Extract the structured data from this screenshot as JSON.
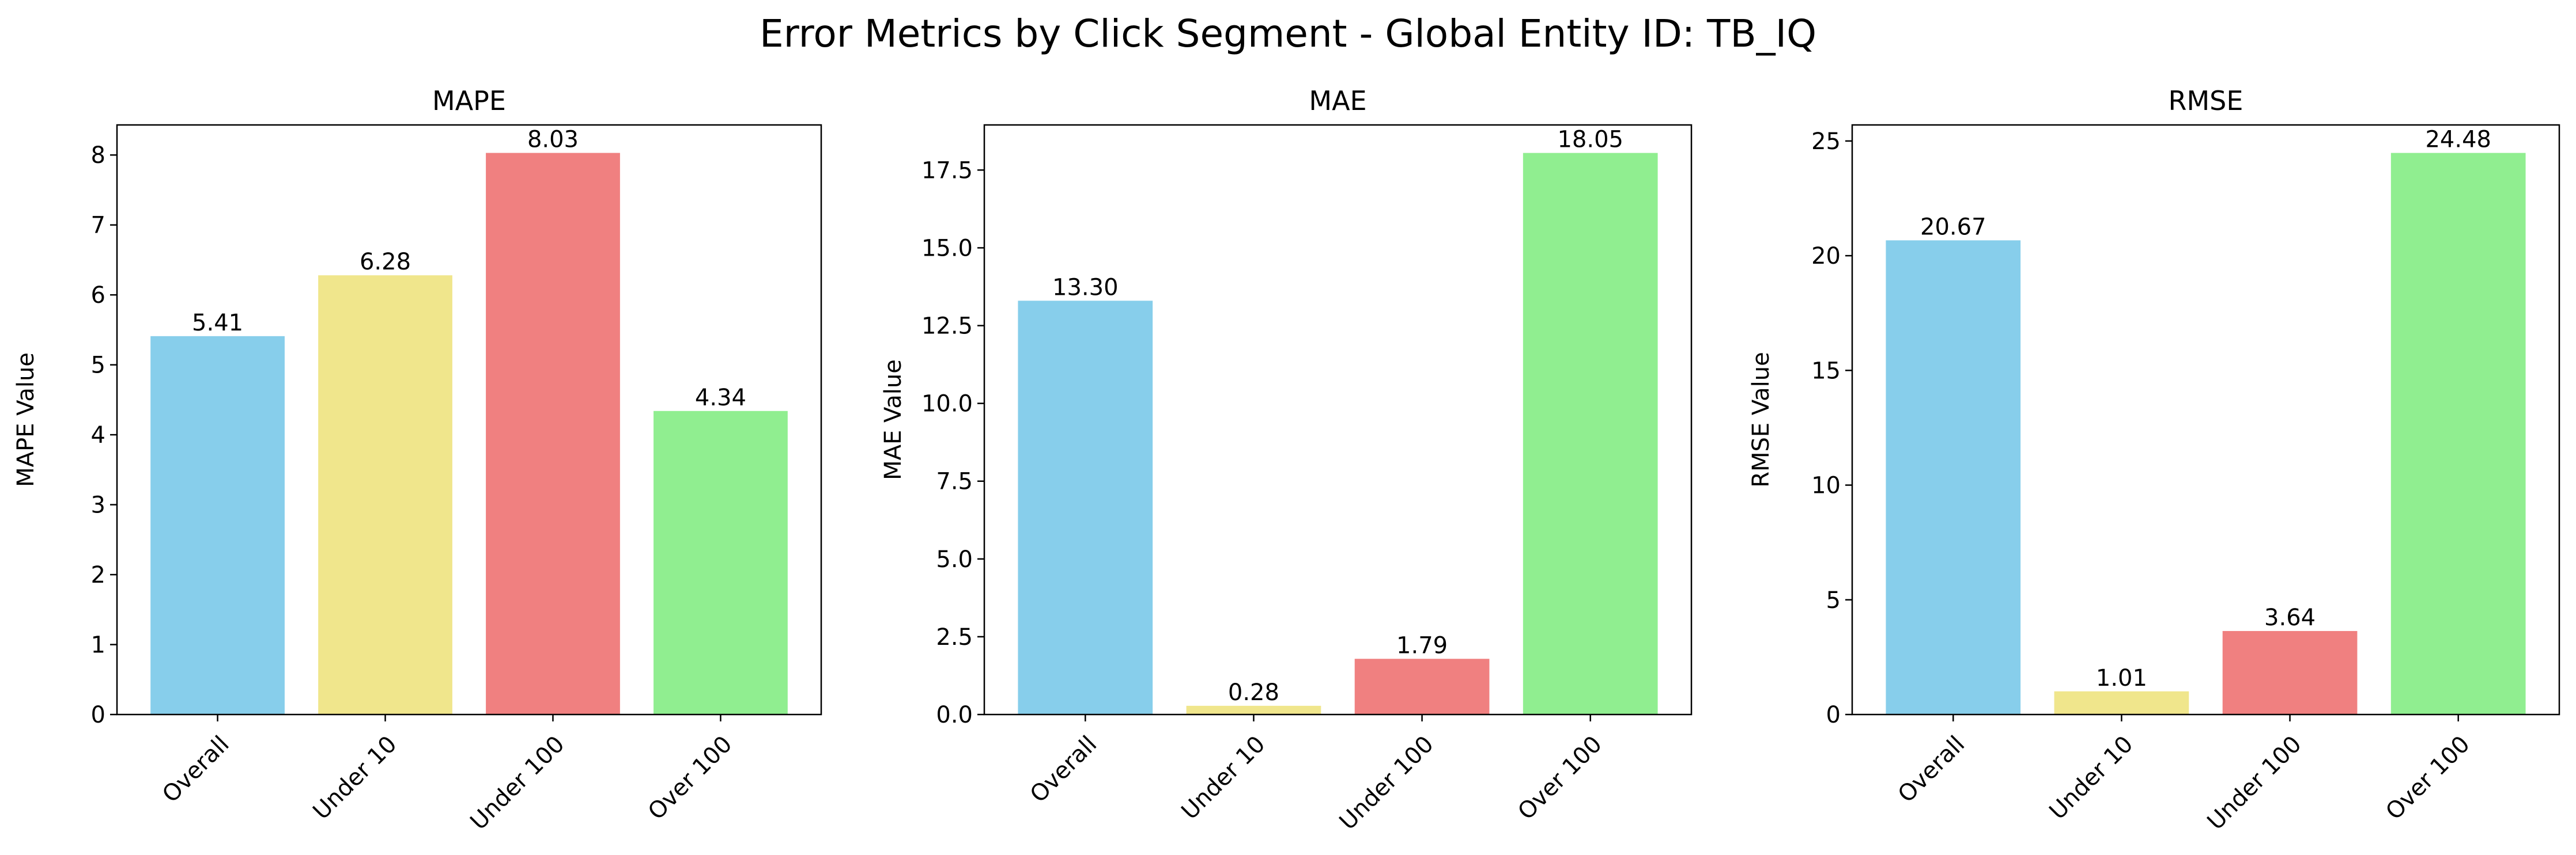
{
  "figure": {
    "suptitle": "Error Metrics by Click Segment - Global Entity ID: TB_IQ"
  },
  "chart_data": [
    {
      "type": "bar",
      "title": "MAPE",
      "xlabel": "",
      "ylabel": "MAPE Value",
      "categories": [
        "Overall",
        "Under 10",
        "Under 100",
        "Over 100"
      ],
      "values": [
        5.41,
        6.28,
        8.03,
        4.34
      ],
      "data_labels": [
        "5.41",
        "6.28",
        "8.03",
        "4.34"
      ],
      "colors": [
        "#87CEEB",
        "#F0E68C",
        "#F08080",
        "#90EE90"
      ],
      "ylim": [
        0,
        8.43
      ],
      "yticks": [
        0,
        1,
        2,
        3,
        4,
        5,
        6,
        7,
        8
      ],
      "ytick_labels": [
        "0",
        "1",
        "2",
        "3",
        "4",
        "5",
        "6",
        "7",
        "8"
      ],
      "grid": false
    },
    {
      "type": "bar",
      "title": "MAE",
      "xlabel": "",
      "ylabel": "MAE Value",
      "categories": [
        "Overall",
        "Under 10",
        "Under 100",
        "Over 100"
      ],
      "values": [
        13.3,
        0.28,
        1.79,
        18.05
      ],
      "data_labels": [
        "13.30",
        "0.28",
        "1.79",
        "18.05"
      ],
      "colors": [
        "#87CEEB",
        "#F0E68C",
        "#F08080",
        "#90EE90"
      ],
      "ylim": [
        0,
        18.95
      ],
      "yticks": [
        0,
        2.5,
        5,
        7.5,
        10,
        12.5,
        15,
        17.5
      ],
      "ytick_labels": [
        "0.0",
        "2.5",
        "5.0",
        "7.5",
        "10.0",
        "12.5",
        "15.0",
        "17.5"
      ],
      "grid": false
    },
    {
      "type": "bar",
      "title": "RMSE",
      "xlabel": "",
      "ylabel": "RMSE Value",
      "categories": [
        "Overall",
        "Under 10",
        "Under 100",
        "Over 100"
      ],
      "values": [
        20.67,
        1.01,
        3.64,
        24.48
      ],
      "data_labels": [
        "20.67",
        "1.01",
        "3.64",
        "24.48"
      ],
      "colors": [
        "#87CEEB",
        "#F0E68C",
        "#F08080",
        "#90EE90"
      ],
      "ylim": [
        0,
        25.7
      ],
      "yticks": [
        0,
        5,
        10,
        15,
        20,
        25
      ],
      "ytick_labels": [
        "0",
        "5",
        "10",
        "15",
        "20",
        "25"
      ],
      "grid": false
    }
  ]
}
